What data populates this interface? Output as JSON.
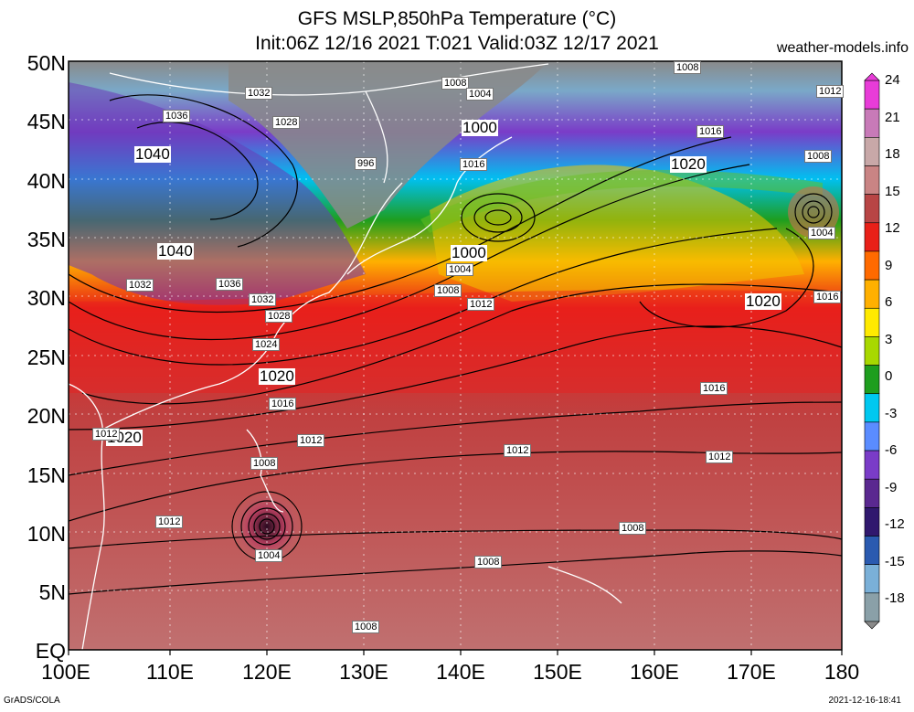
{
  "title_line1": "GFS MSLP,850hPa Temperature (°C)",
  "title_line2": "Init:06Z 12/16 2021 T:021 Valid:03Z 12/17 2021",
  "brand": "weather-models.info",
  "footer_left": "GrADS/COLA",
  "footer_right": "2021-12-16-18:41",
  "lat_labels": [
    "50N",
    "45N",
    "40N",
    "35N",
    "30N",
    "25N",
    "20N",
    "15N",
    "10N",
    "5N",
    "EQ"
  ],
  "lon_labels": [
    "100E",
    "110E",
    "120E",
    "130E",
    "140E",
    "150E",
    "160E",
    "170E",
    "180"
  ],
  "colorbar": {
    "ticks": [
      "24",
      "21",
      "18",
      "15",
      "12",
      "9",
      "6",
      "3",
      "0",
      "-3",
      "-6",
      "-9",
      "-12",
      "-15",
      "-18"
    ],
    "colors": [
      "#e83cd8",
      "#c87ab8",
      "#c8a8a8",
      "#c98484",
      "#b84545",
      "#e82018",
      "#ff6a00",
      "#ffb000",
      "#ffea00",
      "#a8d800",
      "#1e9e1e",
      "#00c8f0",
      "#5a8cff",
      "#7a3cc8",
      "#5a2890",
      "#30186e",
      "#2a5ab0",
      "#7ab0d8",
      "#8aa0a8"
    ]
  },
  "isobars": [
    {
      "t": "1008"
    },
    {
      "t": "1012"
    },
    {
      "t": "1032"
    },
    {
      "t": "1036"
    },
    {
      "t": "1028"
    },
    {
      "t": "1008"
    },
    {
      "t": "1004"
    },
    {
      "t": "1000",
      "big": true
    },
    {
      "t": "1016"
    },
    {
      "t": "996"
    },
    {
      "t": "1040",
      "big": true
    },
    {
      "t": "1016"
    },
    {
      "t": "1020",
      "big": true
    },
    {
      "t": "1008"
    },
    {
      "t": "1040",
      "big": true
    },
    {
      "t": "1000",
      "big": true
    },
    {
      "t": "1004"
    },
    {
      "t": "1004"
    },
    {
      "t": "1032"
    },
    {
      "t": "1036"
    },
    {
      "t": "1032"
    },
    {
      "t": "1008"
    },
    {
      "t": "1012"
    },
    {
      "t": "1028"
    },
    {
      "t": "1020",
      "big": true
    },
    {
      "t": "1016"
    },
    {
      "t": "1024"
    },
    {
      "t": "1020",
      "big": true
    },
    {
      "t": "1016"
    },
    {
      "t": "1016"
    },
    {
      "t": "1012"
    },
    {
      "t": "1012"
    },
    {
      "t": "1012"
    },
    {
      "t": "1020",
      "big": true
    },
    {
      "t": "1008"
    },
    {
      "t": "1012"
    },
    {
      "t": "1008"
    },
    {
      "t": "1004"
    },
    {
      "t": "1008"
    },
    {
      "t": "1008"
    },
    {
      "t": "1012"
    }
  ]
}
